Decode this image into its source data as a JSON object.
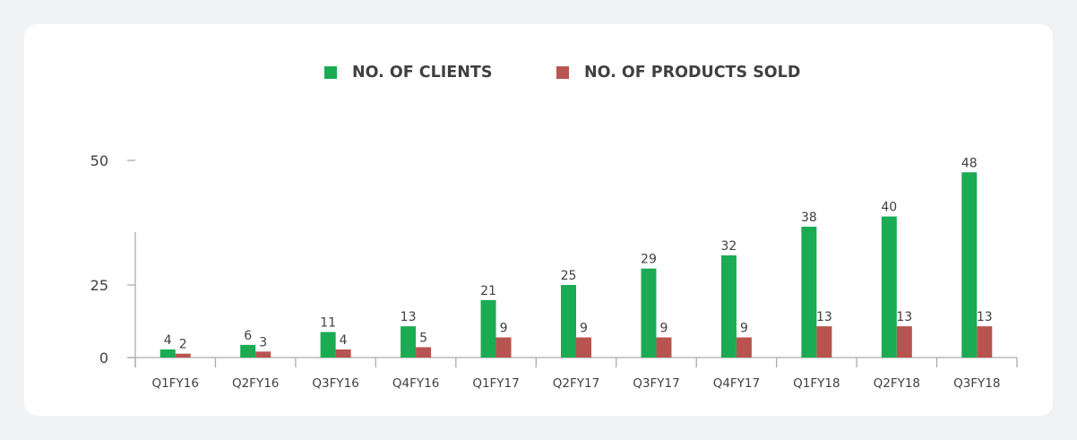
{
  "colors": {
    "clients": "#1aab53",
    "products": "#b85450",
    "axis": "#aaaaaa",
    "text": "#404040",
    "card": "#ffffff",
    "background": "#f0f1f3"
  },
  "chart_data": {
    "type": "bar",
    "title": "",
    "xlabel": "",
    "ylabel": "",
    "ylim": [
      0,
      50
    ],
    "yticks": [
      0,
      25,
      50
    ],
    "grid": false,
    "legend_position": "top-center",
    "categories": [
      "Q1FY16",
      "Q2FY16",
      "Q3FY16",
      "Q4FY16",
      "Q1FY17",
      "Q2FY17",
      "Q3FY17",
      "Q4FY17",
      "Q1FY18",
      "Q2FY18",
      "Q3FY18"
    ],
    "series": [
      {
        "name": "NO. OF CLIENTS",
        "color": "#1aab53",
        "values": [
          4,
          6,
          11,
          13,
          21,
          25,
          29,
          32,
          38,
          40,
          48
        ]
      },
      {
        "name": "NO. OF PRODUCTS SOLD",
        "color": "#b85450",
        "values": [
          2,
          3,
          4,
          5,
          9,
          9,
          9,
          9,
          13,
          13,
          13
        ]
      }
    ]
  }
}
